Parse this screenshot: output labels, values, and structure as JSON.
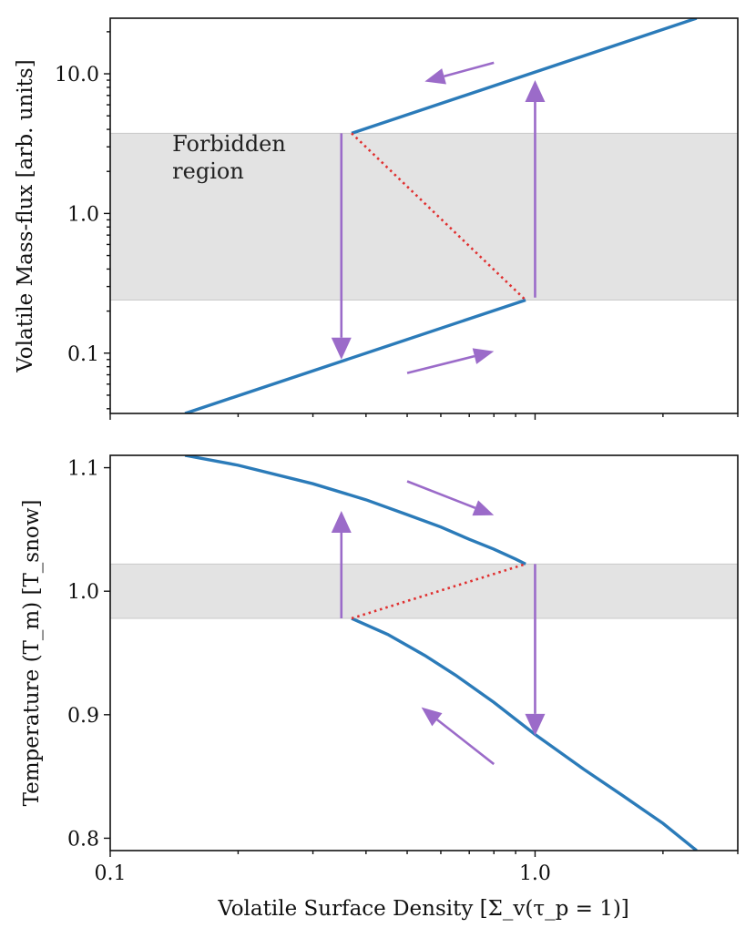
{
  "chart_data": [
    {
      "type": "line",
      "panel": "top",
      "xscale": "log",
      "yscale": "log",
      "xlim": [
        0.1,
        3.0
      ],
      "ylim": [
        0.037,
        25.0
      ],
      "ylabel": "Volatile Mass-flux [arb. units]",
      "xlabel": "",
      "xticks": [
        0.1,
        1.0
      ],
      "xtick_labels": [
        "",
        ""
      ],
      "yticks": [
        0.1,
        1.0,
        10.0
      ],
      "ytick_labels": [
        "0.1",
        "1.0",
        "10.0"
      ],
      "band": {
        "y0": 0.24,
        "y1": 3.75
      },
      "annotation": {
        "text_lines": [
          "Forbidden",
          "region"
        ],
        "x": 0.14,
        "y": 2.0
      },
      "series": [
        {
          "style": "solid",
          "x": [
            0.15,
            0.95
          ],
          "y": [
            0.037,
            0.24
          ]
        },
        {
          "style": "solid",
          "x": [
            0.37,
            2.4
          ],
          "y": [
            3.75,
            25.0
          ]
        },
        {
          "style": "dotted",
          "x": [
            0.37,
            0.95
          ],
          "y": [
            3.75,
            0.24
          ]
        }
      ],
      "arrows": [
        {
          "x0": 0.35,
          "y0": 3.75,
          "x1": 0.35,
          "y1": 0.09,
          "size": "large"
        },
        {
          "x0": 1.0,
          "y0": 0.25,
          "x1": 1.0,
          "y1": 9.0,
          "size": "large"
        },
        {
          "x0": 0.8,
          "y0": 12.0,
          "x1": 0.55,
          "y1": 8.8,
          "size": "small"
        },
        {
          "x0": 0.5,
          "y0": 0.072,
          "x1": 0.8,
          "y1": 0.103,
          "size": "small"
        }
      ]
    },
    {
      "type": "line",
      "panel": "bottom",
      "xscale": "log",
      "yscale": "linear",
      "xlim": [
        0.1,
        3.0
      ],
      "ylim": [
        0.79,
        1.11
      ],
      "ylabel": "Temperature (T_m) [T_snow]",
      "xlabel": "Volatile Surface Density [Σ_v(τ_p = 1)]",
      "xticks": [
        0.1,
        1.0
      ],
      "xtick_labels": [
        "0.1",
        "1.0"
      ],
      "yticks": [
        0.8,
        0.9,
        1.0,
        1.1
      ],
      "ytick_labels": [
        "0.8",
        "0.9",
        "1.0",
        "1.1"
      ],
      "band": {
        "y0": 0.978,
        "y1": 1.022
      },
      "series": [
        {
          "style": "solid",
          "x": [
            0.15,
            0.2,
            0.3,
            0.4,
            0.5,
            0.6,
            0.7,
            0.8,
            0.9,
            0.95
          ],
          "y": [
            1.11,
            1.102,
            1.087,
            1.074,
            1.062,
            1.052,
            1.042,
            1.034,
            1.026,
            1.022
          ]
        },
        {
          "style": "solid",
          "x": [
            0.37,
            0.45,
            0.55,
            0.65,
            0.8,
            1.0,
            1.3,
            1.6,
            2.0,
            2.4
          ],
          "y": [
            0.978,
            0.965,
            0.948,
            0.932,
            0.91,
            0.884,
            0.856,
            0.835,
            0.812,
            0.79
          ]
        },
        {
          "style": "dotted",
          "x": [
            0.37,
            0.95
          ],
          "y": [
            0.978,
            1.022
          ]
        }
      ],
      "arrows": [
        {
          "x0": 0.35,
          "y0": 0.978,
          "x1": 0.35,
          "y1": 1.065,
          "size": "large"
        },
        {
          "x0": 1.0,
          "y0": 1.022,
          "x1": 1.0,
          "y1": 0.883,
          "size": "large"
        },
        {
          "x0": 0.5,
          "y0": 1.089,
          "x1": 0.8,
          "y1": 1.0615,
          "size": "small"
        },
        {
          "x0": 0.8,
          "y0": 0.86,
          "x1": 0.54,
          "y1": 0.906,
          "size": "small"
        }
      ]
    }
  ]
}
